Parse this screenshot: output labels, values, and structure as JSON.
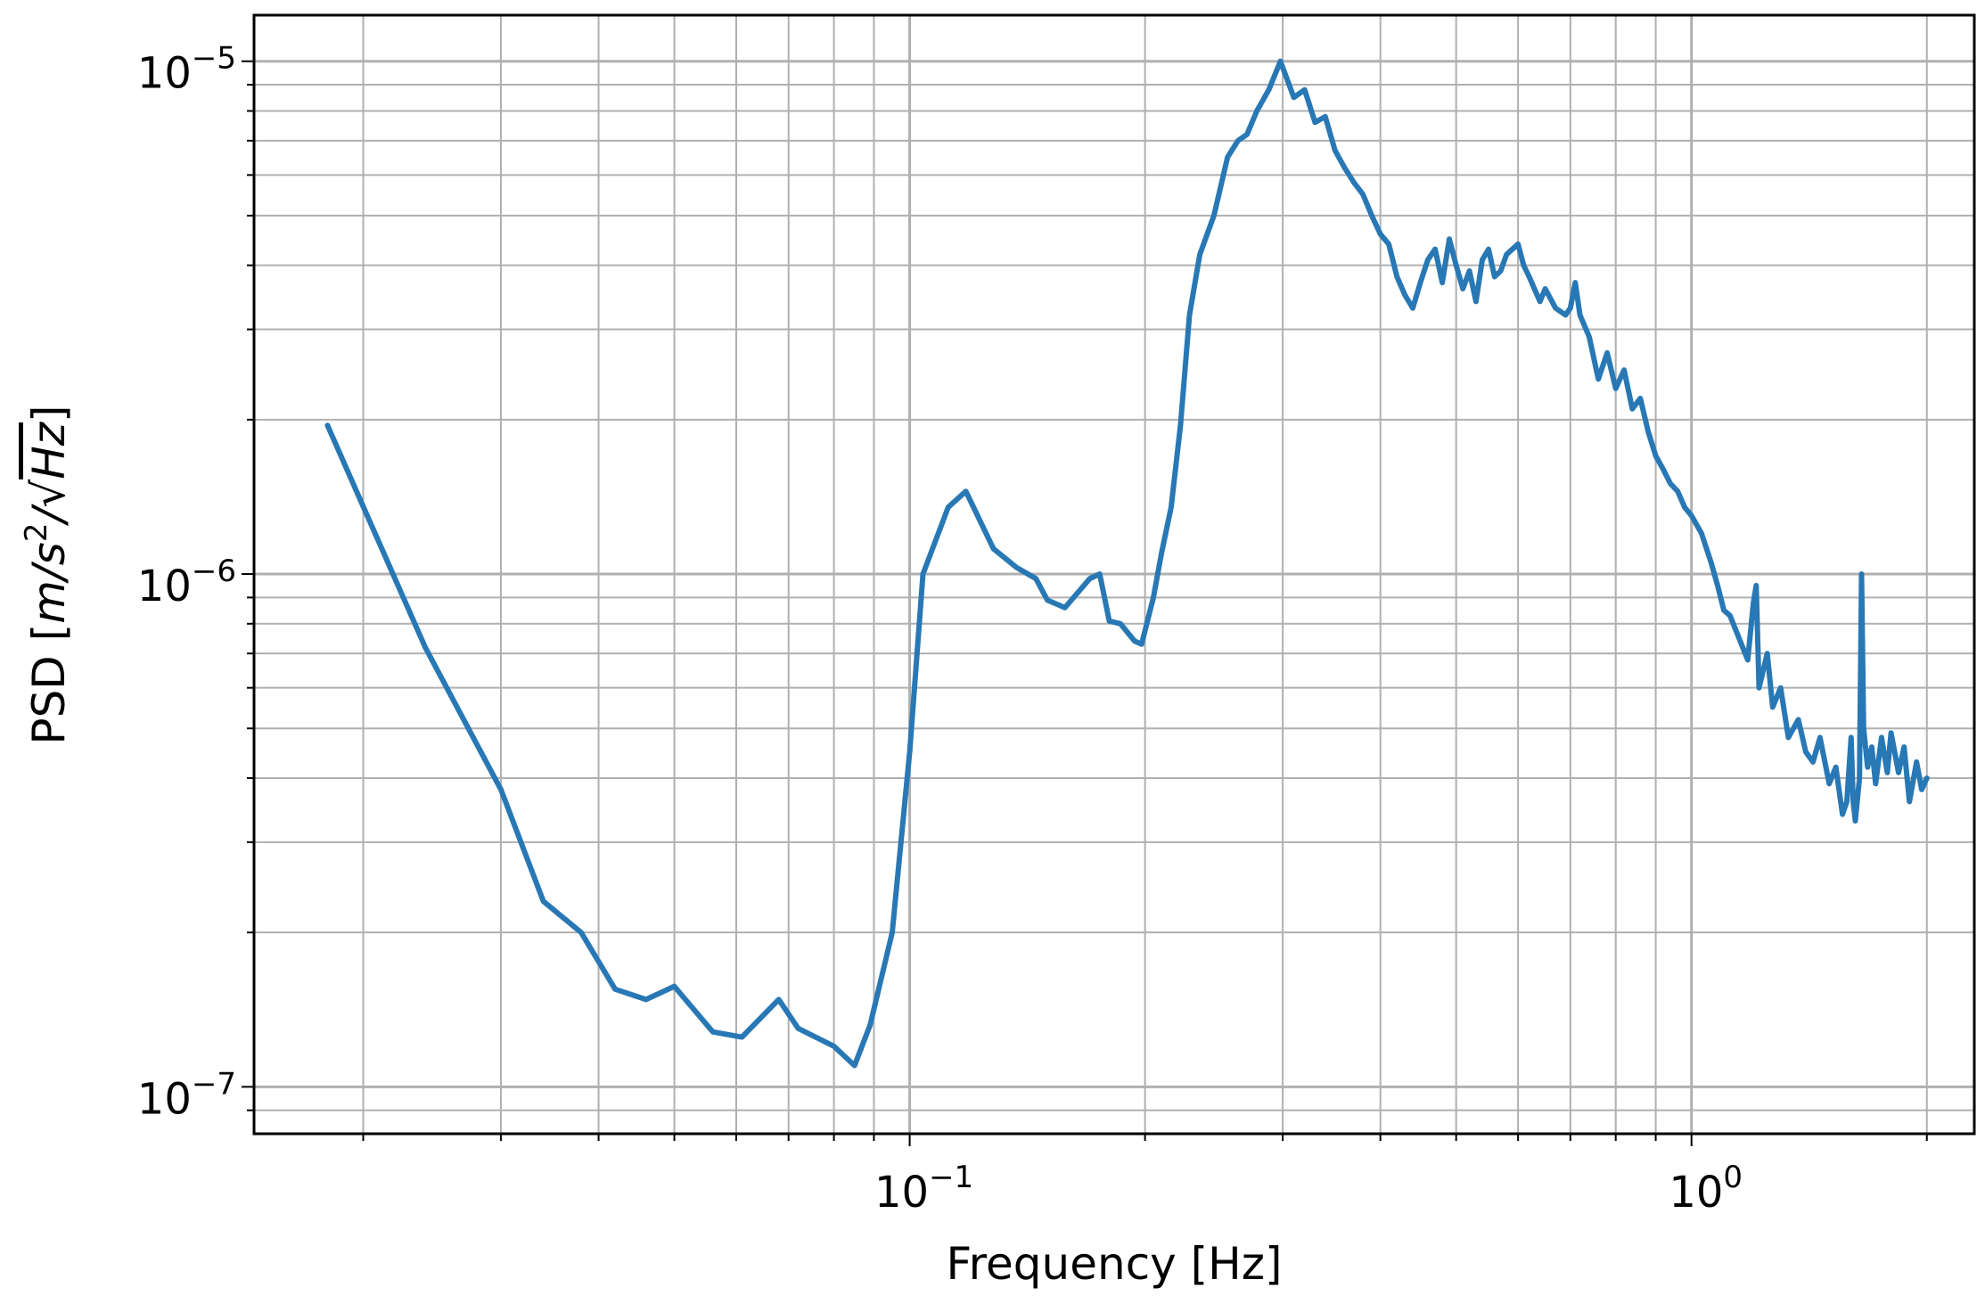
{
  "chart_data": {
    "type": "line",
    "xlabel": "Frequency [Hz]",
    "ylabel": "PSD [m/s²/√Hz]",
    "ylabel_parts": {
      "prefix": "PSD [",
      "m": "m",
      "slash1": "/",
      "s": "s",
      "exp": "2",
      "slash2": "/",
      "sqrt": "√",
      "hz": "Hz",
      "suffix": "]"
    },
    "x_scale": "log",
    "y_scale": "log",
    "xlim": [
      0.0145,
      2.3
    ],
    "ylim": [
      8.1e-08,
      1.23e-05
    ],
    "grid": "major and minor",
    "line_color": "#2878b5",
    "x_ticks": [
      {
        "value": 0.1,
        "base": "10",
        "exp": "−1"
      },
      {
        "value": 1,
        "base": "10",
        "exp": "0"
      }
    ],
    "y_ticks": [
      {
        "value": 1e-07,
        "base": "10",
        "exp": "−7"
      },
      {
        "value": 1e-06,
        "base": "10",
        "exp": "−6"
      },
      {
        "value": 1e-05,
        "base": "10",
        "exp": "−5"
      }
    ],
    "series": [
      {
        "points": [
          [
            0.018,
            1.95e-06
          ],
          [
            0.024,
            7.2e-07
          ],
          [
            0.03,
            3.8e-07
          ],
          [
            0.034,
            2.3e-07
          ],
          [
            0.038,
            2e-07
          ],
          [
            0.042,
            1.55e-07
          ],
          [
            0.046,
            1.48e-07
          ],
          [
            0.05,
            1.57e-07
          ],
          [
            0.056,
            1.28e-07
          ],
          [
            0.061,
            1.25e-07
          ],
          [
            0.068,
            1.48e-07
          ],
          [
            0.072,
            1.3e-07
          ],
          [
            0.08,
            1.2e-07
          ],
          [
            0.085,
            1.1e-07
          ],
          [
            0.089,
            1.32e-07
          ],
          [
            0.095,
            2e-07
          ],
          [
            0.1,
            4.5e-07
          ],
          [
            0.104,
            1e-06
          ],
          [
            0.112,
            1.35e-06
          ],
          [
            0.118,
            1.45e-06
          ],
          [
            0.128,
            1.12e-06
          ],
          [
            0.137,
            1.03e-06
          ],
          [
            0.145,
            9.8e-07
          ],
          [
            0.15,
            8.9e-07
          ],
          [
            0.158,
            8.6e-07
          ],
          [
            0.17,
            9.8e-07
          ],
          [
            0.175,
            1e-06
          ],
          [
            0.18,
            8.1e-07
          ],
          [
            0.186,
            8e-07
          ],
          [
            0.194,
            7.4e-07
          ],
          [
            0.198,
            7.3e-07
          ],
          [
            0.205,
            9e-07
          ],
          [
            0.21,
            1.1e-06
          ],
          [
            0.216,
            1.35e-06
          ],
          [
            0.222,
            1.95e-06
          ],
          [
            0.228,
            3.2e-06
          ],
          [
            0.235,
            4.2e-06
          ],
          [
            0.245,
            5e-06
          ],
          [
            0.255,
            6.5e-06
          ],
          [
            0.263,
            7e-06
          ],
          [
            0.27,
            7.2e-06
          ],
          [
            0.278,
            8e-06
          ],
          [
            0.288,
            8.8e-06
          ],
          [
            0.298,
            1e-05
          ],
          [
            0.31,
            8.5e-06
          ],
          [
            0.32,
            8.8e-06
          ],
          [
            0.33,
            7.6e-06
          ],
          [
            0.34,
            7.8e-06
          ],
          [
            0.35,
            6.7e-06
          ],
          [
            0.36,
            6.2e-06
          ],
          [
            0.37,
            5.8e-06
          ],
          [
            0.38,
            5.5e-06
          ],
          [
            0.39,
            5e-06
          ],
          [
            0.4,
            4.6e-06
          ],
          [
            0.41,
            4.4e-06
          ],
          [
            0.42,
            3.8e-06
          ],
          [
            0.43,
            3.5e-06
          ],
          [
            0.44,
            3.3e-06
          ],
          [
            0.45,
            3.7e-06
          ],
          [
            0.46,
            4.1e-06
          ],
          [
            0.47,
            4.3e-06
          ],
          [
            0.48,
            3.7e-06
          ],
          [
            0.49,
            4.5e-06
          ],
          [
            0.5,
            4e-06
          ],
          [
            0.51,
            3.6e-06
          ],
          [
            0.52,
            3.9e-06
          ],
          [
            0.53,
            3.4e-06
          ],
          [
            0.54,
            4.1e-06
          ],
          [
            0.55,
            4.3e-06
          ],
          [
            0.56,
            3.8e-06
          ],
          [
            0.57,
            3.9e-06
          ],
          [
            0.58,
            4.2e-06
          ],
          [
            0.6,
            4.4e-06
          ],
          [
            0.61,
            4e-06
          ],
          [
            0.62,
            3.8e-06
          ],
          [
            0.64,
            3.4e-06
          ],
          [
            0.65,
            3.6e-06
          ],
          [
            0.67,
            3.3e-06
          ],
          [
            0.69,
            3.2e-06
          ],
          [
            0.7,
            3.3e-06
          ],
          [
            0.71,
            3.7e-06
          ],
          [
            0.72,
            3.2e-06
          ],
          [
            0.74,
            2.9e-06
          ],
          [
            0.76,
            2.4e-06
          ],
          [
            0.78,
            2.7e-06
          ],
          [
            0.8,
            2.3e-06
          ],
          [
            0.82,
            2.5e-06
          ],
          [
            0.84,
            2.1e-06
          ],
          [
            0.86,
            2.2e-06
          ],
          [
            0.88,
            1.9e-06
          ],
          [
            0.9,
            1.7e-06
          ],
          [
            0.92,
            1.6e-06
          ],
          [
            0.94,
            1.5e-06
          ],
          [
            0.96,
            1.45e-06
          ],
          [
            0.98,
            1.35e-06
          ],
          [
            1.0,
            1.3e-06
          ],
          [
            1.03,
            1.2e-06
          ],
          [
            1.06,
            1.05e-06
          ],
          [
            1.08,
            9.5e-07
          ],
          [
            1.1,
            8.5e-07
          ],
          [
            1.12,
            8.3e-07
          ],
          [
            1.15,
            7.5e-07
          ],
          [
            1.18,
            6.8e-07
          ],
          [
            1.2,
            8.8e-07
          ],
          [
            1.21,
            9.5e-07
          ],
          [
            1.22,
            6e-07
          ],
          [
            1.25,
            7e-07
          ],
          [
            1.27,
            5.5e-07
          ],
          [
            1.3,
            6e-07
          ],
          [
            1.33,
            4.8e-07
          ],
          [
            1.37,
            5.2e-07
          ],
          [
            1.4,
            4.5e-07
          ],
          [
            1.43,
            4.3e-07
          ],
          [
            1.46,
            4.8e-07
          ],
          [
            1.5,
            3.9e-07
          ],
          [
            1.53,
            4.2e-07
          ],
          [
            1.56,
            3.4e-07
          ],
          [
            1.58,
            3.6e-07
          ],
          [
            1.6,
            4.8e-07
          ],
          [
            1.61,
            3.6e-07
          ],
          [
            1.62,
            3.3e-07
          ],
          [
            1.64,
            4e-07
          ],
          [
            1.65,
            1e-06
          ],
          [
            1.66,
            5e-07
          ],
          [
            1.68,
            4.2e-07
          ],
          [
            1.7,
            4.6e-07
          ],
          [
            1.72,
            3.9e-07
          ],
          [
            1.75,
            4.8e-07
          ],
          [
            1.78,
            4.1e-07
          ],
          [
            1.8,
            4.9e-07
          ],
          [
            1.84,
            4.1e-07
          ],
          [
            1.87,
            4.6e-07
          ],
          [
            1.9,
            3.6e-07
          ],
          [
            1.94,
            4.3e-07
          ],
          [
            1.97,
            3.8e-07
          ],
          [
            2.0,
            4e-07
          ]
        ]
      }
    ]
  }
}
